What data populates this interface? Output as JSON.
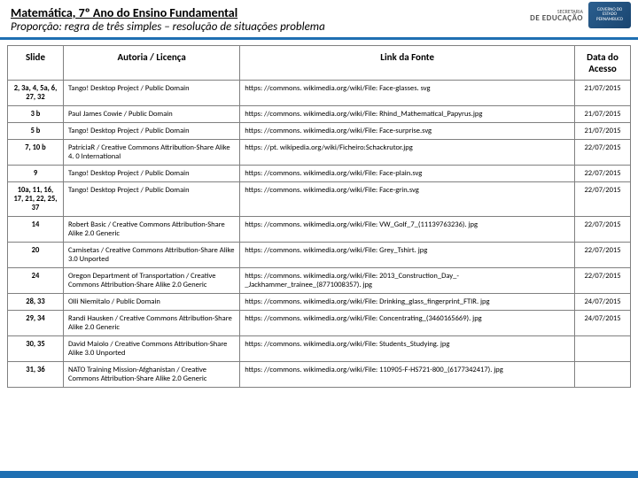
{
  "colors": {
    "header_border": "#1f6fb2",
    "table_border": "#808080",
    "footer": "#1f6fb2",
    "text": "#000000"
  },
  "header": {
    "title": "Matemática, 7º Ano do Ensino Fundamental",
    "subtitle": "Proporção: regra de três simples – resolução de situações problema"
  },
  "logo": {
    "sec_line1": "SECRETARIA",
    "sec_line2": "DE EDUCAÇÃO",
    "state": "GOVERNO DO ESTADO PERNAMBUCO"
  },
  "table": {
    "headers": {
      "slide": "Slide",
      "autoria": "Autoria / Licença",
      "link": "Link da Fonte",
      "data": "Data do Acesso"
    },
    "col_align": {
      "slide": "center",
      "autoria": "left",
      "link": "left",
      "data": "center"
    },
    "rows": [
      {
        "slide": "2, 3a, 4, 5a, 6, 27, 32",
        "autoria": "Tango! Desktop Project / Public Domain",
        "link": "https: //commons. wikimedia.org/wiki/File: Face-glasses. svg",
        "data": "21/07/2015"
      },
      {
        "slide": "3 b",
        "autoria": "Paul James Cowie / Public Domain",
        "link": "https: //commons. wikimedia.org/wiki/File: Rhind_Mathematical_Papyrus.jpg",
        "data": "21/07/2015"
      },
      {
        "slide": "5 b",
        "autoria": "Tango! Desktop Project / Public Domain",
        "link": "https: //commons. wikimedia.org/wiki/File: Face-surprise.svg",
        "data": "21/07/2015"
      },
      {
        "slide": "7, 10 b",
        "autoria": "PatríciaR / Creative Commons Attribution-Share Alike 4. 0 International",
        "link": "https: //pt. wikipedia.org/wiki/Ficheiro:Schackrutor.jpg",
        "data": "22/07/2015"
      },
      {
        "slide": "9",
        "autoria": "Tango! Desktop Project / Public Domain",
        "link": "https: //commons. wikimedia.org/wiki/File: Face-plain.svg",
        "data": "22/07/2015"
      },
      {
        "slide": "10a, 11, 16, 17, 21, 22, 25, 37",
        "autoria": "Tango! Desktop Project / Public Domain",
        "link": "https: //commons. wikimedia.org/wiki/File: Face-grin.svg",
        "data": "22/07/2015"
      },
      {
        "slide": "14",
        "autoria": "Robert Basic / Creative Commons Attribution-Share Alike 2.0 Generic",
        "link": "https: //commons. wikimedia.org/wiki/File: VW_Golf_7_(11139763236). jpg",
        "data": "22/07/2015"
      },
      {
        "slide": "20",
        "autoria": "Camisetas / Creative Commons Attribution-Share Alike 3.0 Unported",
        "link": "https: //commons. wikimedia.org/wiki/File: Grey_Tshirt. jpg",
        "data": "22/07/2015"
      },
      {
        "slide": "24",
        "autoria": "Oregon Department of Transportation / Creative Commons Attribution-Share Alike 2.0 Generic",
        "link": "https: //commons. wikimedia.org/wiki/File: 2013_Construction_Day_-_Jackhammer_trainee_(8771008357). jpg",
        "data": "22/07/2015"
      },
      {
        "slide": "28, 33",
        "autoria": "Olli Niemitalo / Public Domain",
        "link": "https: //commons. wikimedia.org/wiki/File: Drinking_glass_fingerprint_FTIR. jpg",
        "data": "24/07/2015"
      },
      {
        "slide": "29, 34",
        "autoria": "Randi Hausken / Creative Commons Attribution-Share Alike 2.0 Generic",
        "link": "https: //commons. wikimedia.org/wiki/File: Concentrating_(3460165669). jpg",
        "data": "24/07/2015"
      },
      {
        "slide": "30, 35",
        "autoria": "David Maiolo / Creative Commons Attribution-Share Alike 3.0 Unported",
        "link": "https: //commons. wikimedia.org/wiki/File: Students_Studying. jpg",
        "data": ""
      },
      {
        "slide": "31, 36",
        "autoria": "NATO Training Mission-Afghanistan / Creative Commons Attribution-Share Alike 2.0 Generic",
        "link": "https: //commons. wikimedia.org/wiki/File: 110905-F-HS721-800_(6177342417). jpg",
        "data": ""
      }
    ]
  }
}
